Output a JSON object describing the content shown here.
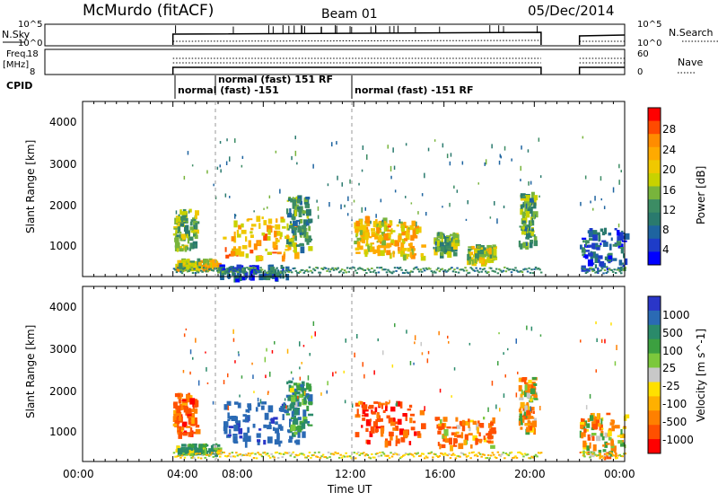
{
  "header": {
    "station": "McMurdo (fitACF)",
    "beam": "Beam 01",
    "date": "05/Dec/2014"
  },
  "top_panels": {
    "nsky_label": "N.Sky",
    "nsky_ticks": [
      "10^5",
      "10^0"
    ],
    "nsearch_label": "N.Search",
    "nsearch_ticks": [
      "10^5",
      "10^0"
    ],
    "freq_label_line1": "Freq.",
    "freq_label_line2": "[MHz]",
    "freq_ticks": [
      "18",
      "8"
    ],
    "nave_label": "Nave",
    "nave_ticks": [
      "60",
      "0"
    ],
    "cpid_label": "CPID",
    "cpid_segments": [
      {
        "text": "normal (fast) -151",
        "start_hour": 4.0
      },
      {
        "text": "normal (fast) 151 RF",
        "start_hour": 6.0
      },
      {
        "text": "normal (fast) -151 RF",
        "start_hour": 12.0
      }
    ]
  },
  "power_panel": {
    "ylabel": "Slant Range [km]",
    "yticks": [
      "4000",
      "3000",
      "2000",
      "1000"
    ],
    "colorbar_label": "Power [dB]",
    "colorbar_ticks": [
      "28",
      "24",
      "20",
      "16",
      "12",
      "8",
      "4"
    ],
    "colors": [
      "#ff0000",
      "#ff4a00",
      "#ff8c00",
      "#ffaa00",
      "#f0c800",
      "#c8d200",
      "#78b43c",
      "#3c8c64",
      "#2a7a6e",
      "#1e64a0",
      "#1e3cc8",
      "#0000ff"
    ]
  },
  "velocity_panel": {
    "ylabel": "Slant Range [km]",
    "yticks": [
      "4000",
      "3000",
      "2000",
      "1000"
    ],
    "colorbar_label": "Velocity [m s^-1]",
    "colorbar_ticks": [
      "1000",
      "500",
      "100",
      "25",
      "-25",
      "-100",
      "-500",
      "-1000"
    ],
    "colors": [
      "#2a36c8",
      "#2a6ab4",
      "#2a8a6a",
      "#3ca040",
      "#7cc83c",
      "#c8c8c8",
      "#ffe000",
      "#ffb000",
      "#ff8000",
      "#ff5000",
      "#ff0000"
    ]
  },
  "xaxis": {
    "label": "Time UT",
    "ticks": [
      "00:00",
      "04:00",
      "08:00",
      "12:00",
      "16:00",
      "20:00",
      "00:00"
    ]
  },
  "chart_data": {
    "type": "heatmap",
    "title": "McMurdo (fitACF) Beam 01 05/Dec/2014",
    "xlabel": "Time UT",
    "ylabel": "Slant Range [km]",
    "xlim_hours": [
      0,
      24
    ],
    "ylim_km": [
      200,
      4500
    ],
    "data_gaps_hours": [
      [
        20.3,
        22.0
      ]
    ],
    "power_regions": [
      {
        "t": [
          4.0,
          5.0
        ],
        "r": [
          900,
          1900
        ],
        "power_db": 14
      },
      {
        "t": [
          4.1,
          6.0
        ],
        "r": [
          450,
          650
        ],
        "power_db": 18
      },
      {
        "t": [
          6.2,
          9.5
        ],
        "r": [
          700,
          1700
        ],
        "power_db": 22
      },
      {
        "t": [
          6.0,
          9.0
        ],
        "r": [
          200,
          500
        ],
        "power_db": 6
      },
      {
        "t": [
          9.0,
          10.0
        ],
        "r": [
          900,
          2200
        ],
        "power_db": 10
      },
      {
        "t": [
          12.0,
          13.5
        ],
        "r": [
          800,
          1700
        ],
        "power_db": 18
      },
      {
        "t": [
          13.0,
          15.0
        ],
        "r": [
          700,
          1600
        ],
        "power_db": 20
      },
      {
        "t": [
          15.5,
          16.5
        ],
        "r": [
          800,
          1300
        ],
        "power_db": 12
      },
      {
        "t": [
          17.0,
          18.2
        ],
        "r": [
          600,
          1000
        ],
        "power_db": 16
      },
      {
        "t": [
          19.3,
          20.0
        ],
        "r": [
          1000,
          2300
        ],
        "power_db": 12
      },
      {
        "t": [
          22.0,
          24.0
        ],
        "r": [
          400,
          1400
        ],
        "power_db": 6
      }
    ],
    "velocity_regions": [
      {
        "t": [
          4.0,
          5.0
        ],
        "r": [
          900,
          1900
        ],
        "velocity_ms": -300
      },
      {
        "t": [
          4.1,
          6.0
        ],
        "r": [
          450,
          650
        ],
        "velocity_ms": 200
      },
      {
        "t": [
          6.2,
          9.5
        ],
        "r": [
          700,
          1700
        ],
        "velocity_ms": 800
      },
      {
        "t": [
          9.0,
          10.0
        ],
        "r": [
          900,
          2200
        ],
        "velocity_ms": 300
      },
      {
        "t": [
          12.0,
          15.0
        ],
        "r": [
          700,
          1700
        ],
        "velocity_ms": -400
      },
      {
        "t": [
          15.5,
          18.2
        ],
        "r": [
          600,
          1300
        ],
        "velocity_ms": -200
      },
      {
        "t": [
          19.3,
          20.0
        ],
        "r": [
          1000,
          2300
        ],
        "velocity_ms": -100
      },
      {
        "t": [
          22.0,
          24.0
        ],
        "r": [
          400,
          1400
        ],
        "velocity_ms": -50
      }
    ]
  }
}
